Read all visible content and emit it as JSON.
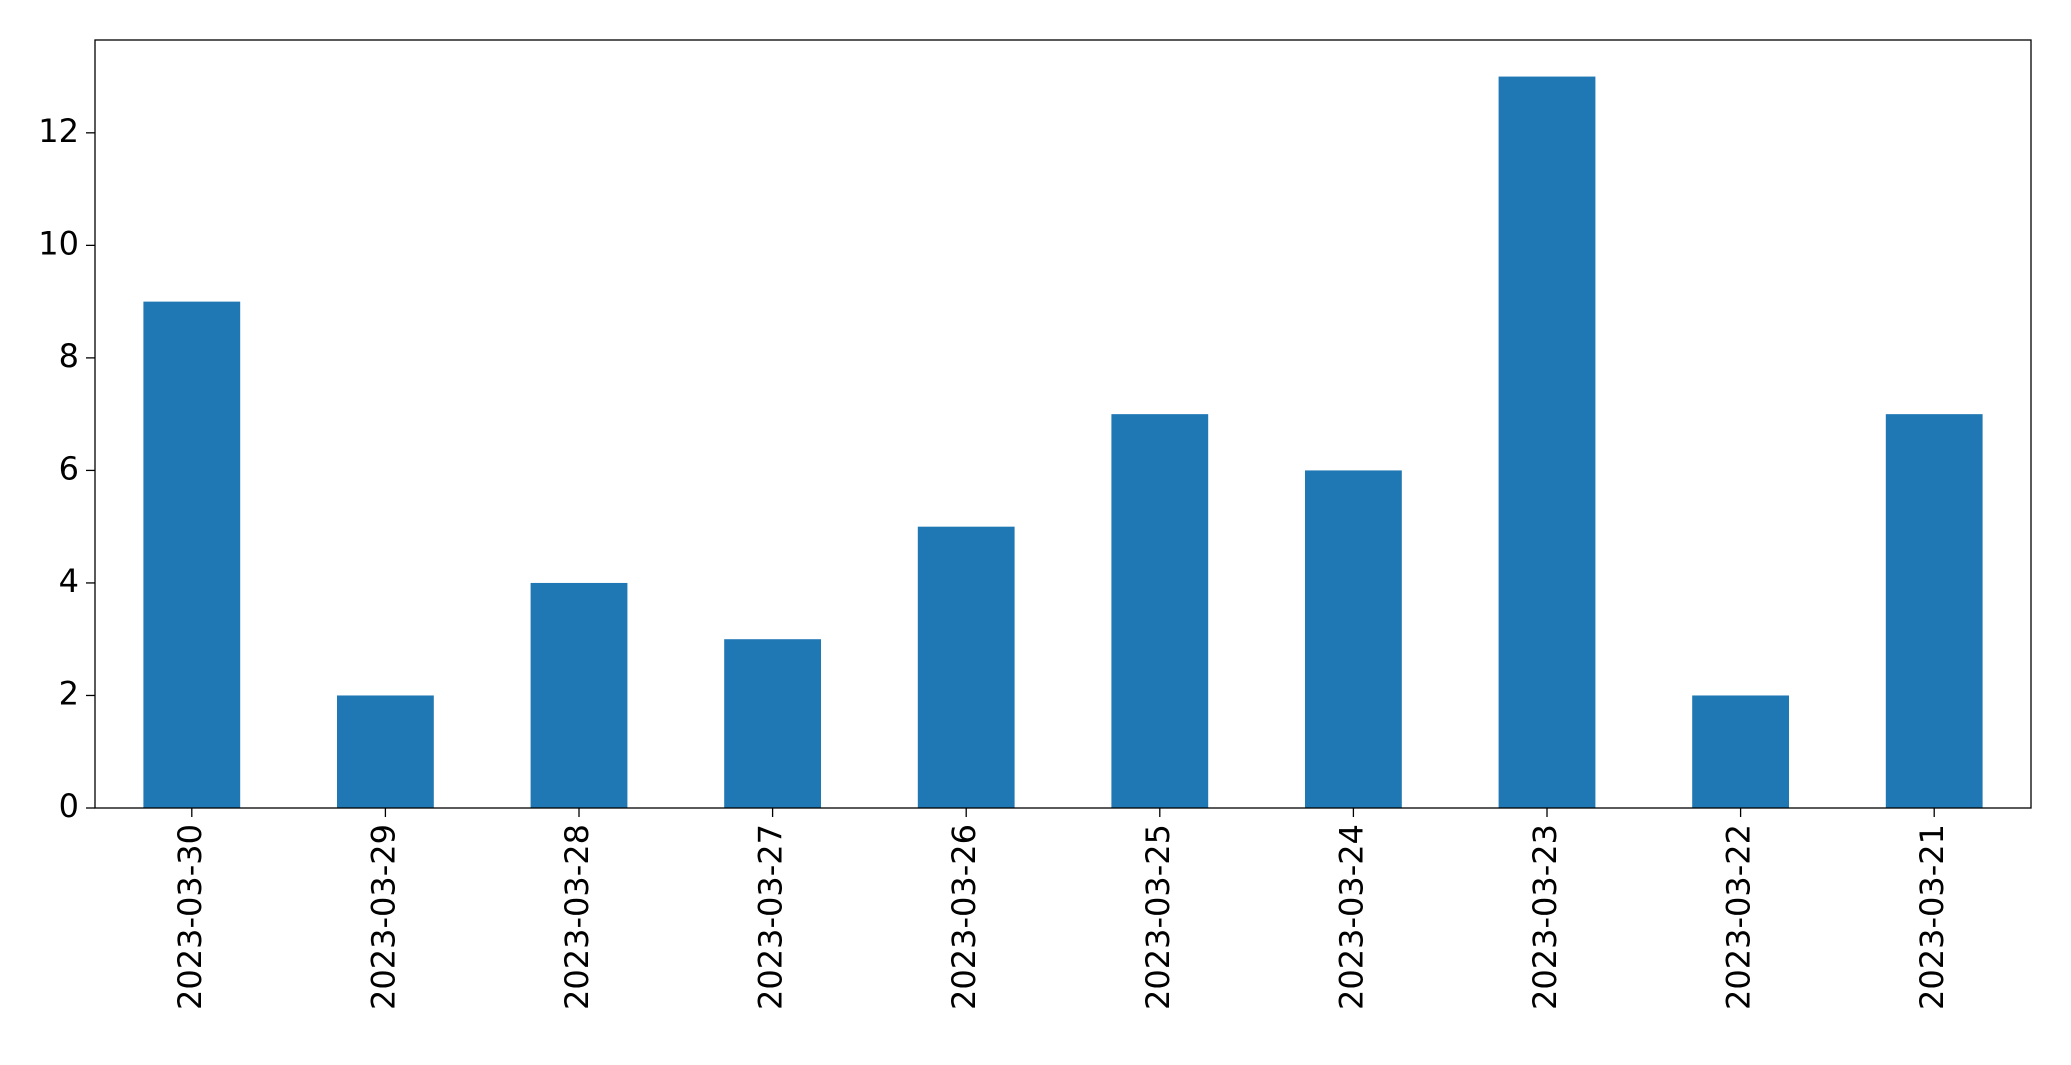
{
  "chart_data": {
    "type": "bar",
    "categories": [
      "2023-03-30",
      "2023-03-29",
      "2023-03-28",
      "2023-03-27",
      "2023-03-26",
      "2023-03-25",
      "2023-03-24",
      "2023-03-23",
      "2023-03-22",
      "2023-03-21"
    ],
    "values": [
      9,
      2,
      4,
      3,
      5,
      7,
      6,
      13,
      2,
      7
    ],
    "color": "#1f77b4",
    "ylim": [
      0,
      13.65
    ],
    "yticks": [
      0,
      2,
      4,
      6,
      8,
      10,
      12
    ],
    "grid": false
  }
}
